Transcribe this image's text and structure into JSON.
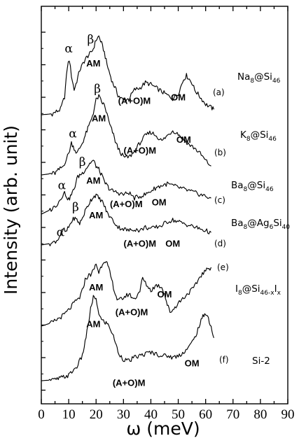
{
  "chart_data": {
    "type": "line",
    "xlabel": "ω (meV)",
    "ylabel": "Intensity (arb. unit)",
    "xlim": [
      0,
      90
    ],
    "xticks": [
      "0",
      "10",
      "20",
      "30",
      "40",
      "50",
      "60",
      "70",
      "80",
      "90"
    ],
    "grid": false,
    "series": [
      {
        "panel": "(a)",
        "compound": {
          "base": "Na",
          "s1": "8",
          "mid": "@Si",
          "s2": "46",
          "s3": "",
          "tail": "",
          "s4": ""
        },
        "x": [
          0,
          4,
          7,
          8.5,
          9.5,
          10.2,
          11,
          12,
          13,
          14,
          15,
          16,
          17,
          18,
          19,
          20,
          21,
          22,
          23,
          24,
          25,
          26,
          27,
          28,
          30,
          32,
          34,
          36,
          38,
          40,
          42,
          44,
          46,
          48,
          50,
          52,
          53,
          54,
          55,
          56,
          58,
          60,
          62,
          63
        ],
        "y": [
          0.0,
          0.5,
          3.0,
          10.0,
          27.0,
          31.0,
          22.0,
          14.0,
          19.0,
          25.0,
          28.0,
          31.0,
          33.0,
          34.5,
          37.0,
          42.0,
          44.0,
          40.0,
          35.0,
          28.0,
          23.0,
          18.0,
          15.0,
          11.0,
          8.0,
          9.0,
          14.0,
          15.0,
          18.0,
          17.0,
          15.0,
          13.0,
          11.0,
          9.0,
          12.0,
          20.0,
          22.0,
          20.0,
          18.0,
          14.0,
          10.0,
          6.0,
          4.0,
          3.0
        ],
        "peaks": [
          {
            "text": "α",
            "x": 10,
            "y": 35
          },
          {
            "text": "β",
            "x": 18,
            "y": 40
          },
          {
            "text": "AM",
            "x": 19,
            "y": 27
          },
          {
            "text": "(A+O)M",
            "x": 34,
            "y": 6
          },
          {
            "text": "OM",
            "x": 50,
            "y": 8
          }
        ]
      },
      {
        "panel": "(b)",
        "compound": {
          "base": "K",
          "s1": "8",
          "mid": "@Si",
          "s2": "46",
          "s3": "",
          "tail": "",
          "s4": ""
        },
        "x": [
          0,
          5,
          8,
          10,
          11,
          12,
          13,
          14,
          15,
          16,
          17,
          18,
          19,
          20,
          21,
          22,
          23,
          24,
          25,
          26,
          27,
          28,
          30,
          32,
          34,
          36,
          38,
          40,
          42,
          44,
          46,
          48,
          50,
          52,
          54,
          56,
          58,
          60,
          62
        ],
        "y": [
          0.0,
          1.0,
          5.0,
          12.0,
          18.0,
          15.0,
          12.0,
          15.0,
          18.0,
          22.0,
          26.0,
          30.0,
          35.0,
          42.0,
          44.0,
          41.0,
          39.0,
          34.0,
          28.0,
          24.0,
          19.0,
          15.0,
          10.0,
          10.0,
          13.0,
          18.0,
          22.0,
          24.0,
          22.0,
          19.0,
          22.0,
          25.0,
          23.0,
          20.0,
          17.0,
          15.0,
          12.0,
          8.0,
          5.0
        ],
        "peaks": [
          {
            "text": "α",
            "x": 11.5,
            "y": 21
          },
          {
            "text": "β",
            "x": 20.5,
            "y": 46
          },
          {
            "text": "AM",
            "x": 21,
            "y": 30
          },
          {
            "text": "(A+O)M",
            "x": 36,
            "y": 12
          },
          {
            "text": "OM",
            "x": 52,
            "y": 18
          }
        ]
      },
      {
        "panel": "(c)",
        "compound": {
          "base": "Ba",
          "s1": "8",
          "mid": "@Si",
          "s2": "46",
          "s3": "",
          "tail": "",
          "s4": ""
        },
        "x": [
          0,
          4,
          6,
          7.5,
          8.5,
          10,
          11,
          12,
          13,
          14,
          15,
          16,
          17,
          18,
          19,
          20,
          21,
          22,
          23,
          24,
          25,
          26,
          28,
          30,
          32,
          34,
          36,
          38,
          40,
          42,
          44,
          46,
          48,
          50,
          52,
          54,
          56,
          58,
          60,
          62
        ],
        "y": [
          0.0,
          3.0,
          6.0,
          10.0,
          12.0,
          8.0,
          11.0,
          14.0,
          20.0,
          22.0,
          23.0,
          25.0,
          27.0,
          29.0,
          30.0,
          27.0,
          25.0,
          22.0,
          18.0,
          16.0,
          14.0,
          13.0,
          12.0,
          11.0,
          12.0,
          9.0,
          10.0,
          11.0,
          13.0,
          15.0,
          16.0,
          17.0,
          16.0,
          15.0,
          14.0,
          13.0,
          12.0,
          11.0,
          10.0,
          9.0
        ],
        "peaks": [
          {
            "text": "α",
            "x": 7.5,
            "y": 14
          },
          {
            "text": "β",
            "x": 15,
            "y": 27
          },
          {
            "text": "AM",
            "x": 19,
            "y": 17
          },
          {
            "text": "(A+O)M",
            "x": 31,
            "y": 4
          },
          {
            "text": "OM",
            "x": 43,
            "y": 5
          }
        ]
      },
      {
        "panel": "(d)",
        "compound": {
          "base": "Ba",
          "s1": "8",
          "mid": "@Ag",
          "s2": "6",
          "s3": "",
          "tail": "Si",
          "s4": "40"
        },
        "x": [
          0,
          4,
          6,
          7,
          8,
          9,
          10,
          11,
          12,
          13,
          14,
          15,
          16,
          17,
          18,
          19,
          20,
          21,
          22,
          23,
          24,
          26,
          28,
          30,
          32,
          34,
          36,
          38,
          40,
          42,
          44,
          46,
          48,
          50,
          52,
          54,
          56,
          58,
          60,
          62
        ],
        "y": [
          0.0,
          1.0,
          3.0,
          6.0,
          9.0,
          7.0,
          10.0,
          13.0,
          15.0,
          14.0,
          12.0,
          15.0,
          19.0,
          22.0,
          25.0,
          27.0,
          28.0,
          26.0,
          25.0,
          22.0,
          18.0,
          14.0,
          10.0,
          9.0,
          8.0,
          9.0,
          8.0,
          10.0,
          9.0,
          10.0,
          11.0,
          13.0,
          14.0,
          13.0,
          12.0,
          11.0,
          10.0,
          9.0,
          8.0,
          7.0
        ],
        "peaks": [
          {
            "text": "α",
            "x": 7,
            "y": 5
          },
          {
            "text": "β",
            "x": 12.5,
            "y": 19
          },
          {
            "text": "AM",
            "x": 20,
            "y": 15
          },
          {
            "text": "(A+O)M",
            "x": 36,
            "y": -1
          },
          {
            "text": "OM",
            "x": 48,
            "y": -1
          }
        ]
      },
      {
        "panel": "(e)",
        "compound": {
          "base": "I",
          "s1": "8",
          "mid": "@Si",
          "s2": "46-x",
          "s3": "",
          "tail": "I",
          "s4": "x"
        },
        "x": [
          0,
          4,
          8,
          10,
          12,
          14,
          15,
          16,
          17,
          18,
          19,
          20,
          21,
          22,
          23,
          24,
          25,
          26,
          27,
          28,
          30,
          32,
          34,
          36,
          37,
          38,
          40,
          42,
          44,
          45,
          46,
          47,
          48,
          50,
          52,
          54,
          56,
          58,
          60,
          62
        ],
        "y": [
          0.0,
          2.0,
          6.0,
          9.0,
          13.0,
          16.0,
          20.0,
          26.0,
          28.0,
          29.0,
          31.0,
          35.0,
          30.0,
          34.0,
          37.0,
          35.0,
          30.0,
          24.0,
          18.0,
          14.0,
          16.0,
          18.0,
          15.0,
          20.0,
          27.0,
          24.0,
          20.0,
          23.0,
          22.0,
          18.0,
          12.0,
          8.0,
          9.0,
          13.0,
          16.0,
          19.0,
          22.0,
          28.0,
          31.0,
          33.0
        ],
        "peaks": [
          {
            "text": "AM",
            "x": 20,
            "y": 20
          },
          {
            "text": "(A+O)M",
            "x": 33,
            "y": 6
          },
          {
            "text": "OM",
            "x": 45,
            "y": 16
          }
        ]
      },
      {
        "panel": "(f)",
        "compound": {
          "base": "Si-2",
          "s1": "",
          "mid": "",
          "s2": "",
          "s3": "",
          "tail": "",
          "s4": ""
        },
        "x": [
          0,
          5,
          10,
          13,
          15,
          16,
          17,
          18,
          19,
          20,
          21,
          22,
          23,
          24,
          25,
          26,
          27,
          28,
          30,
          32,
          34,
          36,
          38,
          40,
          42,
          44,
          46,
          48,
          50,
          52,
          54,
          56,
          58,
          59,
          60,
          61,
          62,
          63
        ],
        "y": [
          0.0,
          0.5,
          3.0,
          8.0,
          14.0,
          22.0,
          30.0,
          40.0,
          47.0,
          45.0,
          38.0,
          34.0,
          33.0,
          32.0,
          30.0,
          26.0,
          22.0,
          16.0,
          12.0,
          11.0,
          13.0,
          14.0,
          15.0,
          16.0,
          15.0,
          14.0,
          14.0,
          13.0,
          14.0,
          16.0,
          19.0,
          24.0,
          32.0,
          36.0,
          38.0,
          35.0,
          30.0,
          24.0
        ],
        "peaks": [
          {
            "text": "AM",
            "x": 19,
            "y": 30
          },
          {
            "text": "(A+O)M",
            "x": 32,
            "y": -3
          },
          {
            "text": "OM",
            "x": 55,
            "y": 8
          }
        ]
      }
    ]
  }
}
